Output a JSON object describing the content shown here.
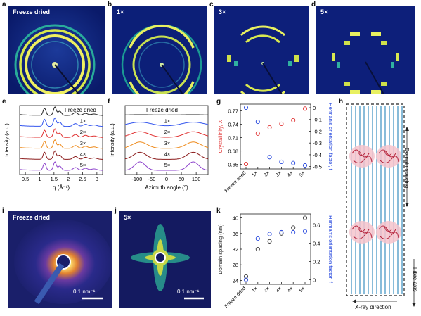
{
  "panels": {
    "a": {
      "letter": "a",
      "label": "Freeze dried"
    },
    "b": {
      "letter": "b",
      "label": "1×"
    },
    "c": {
      "letter": "c",
      "label": "3×"
    },
    "d": {
      "letter": "d",
      "label": "5×"
    },
    "e": {
      "letter": "e"
    },
    "f": {
      "letter": "f"
    },
    "g": {
      "letter": "g"
    },
    "h": {
      "letter": "h"
    },
    "i": {
      "letter": "i",
      "label": "Freeze dried",
      "scale": "0.1 nm⁻¹"
    },
    "j": {
      "letter": "j",
      "label": "5×",
      "scale": "0.1 nm⁻¹"
    },
    "k": {
      "letter": "k"
    }
  },
  "diagram_h": {
    "domain_spacing": "Domain spacing",
    "fibre_axis": "Fibre axis",
    "xray": "X-ray direction"
  },
  "chart_data": [
    {
      "id": "e",
      "type": "line",
      "xlabel": "q (Å⁻¹)",
      "ylabel": "Intensity (a.u.)",
      "xlim": [
        0.3,
        3.2
      ],
      "xticks": [
        0.5,
        1.0,
        1.5,
        2.0,
        2.5,
        3.0
      ],
      "series": [
        {
          "name": "Freeze dried",
          "color": "#222222"
        },
        {
          "name": "1×",
          "color": "#3355ee"
        },
        {
          "name": "2×",
          "color": "#e03030"
        },
        {
          "name": "3×",
          "color": "#ee8a1a"
        },
        {
          "name": "4×",
          "color": "#8b1a1a"
        },
        {
          "name": "5×",
          "color": "#8e44cc"
        }
      ]
    },
    {
      "id": "f",
      "type": "line",
      "xlabel": "Azimuth angle (°)",
      "ylabel": "Intensity (a.u.)",
      "xlim": [
        -140,
        140
      ],
      "xticks": [
        -100,
        -50,
        0,
        50,
        100
      ],
      "series": [
        {
          "name": "Freeze dried",
          "color": "#222222"
        },
        {
          "name": "1×",
          "color": "#3355ee"
        },
        {
          "name": "2×",
          "color": "#e03030"
        },
        {
          "name": "3×",
          "color": "#ee8a1a"
        },
        {
          "name": "4×",
          "color": "#8b1a1a"
        },
        {
          "name": "5×",
          "color": "#8e44cc"
        }
      ]
    },
    {
      "id": "g",
      "type": "scatter",
      "categories": [
        "Freeze dried",
        "1×",
        "2×",
        "3×",
        "4×",
        "5×"
      ],
      "y1label": "Crystallinity, X",
      "y1lim": [
        0.64,
        0.785
      ],
      "y1ticks": [
        0.65,
        0.68,
        0.71,
        0.74,
        0.77
      ],
      "y2label": "Herman's orientation factor, f",
      "y2lim": [
        -0.52,
        0.03
      ],
      "y2ticks": [
        0,
        -0.1,
        -0.2,
        -0.3,
        -0.4,
        -0.5
      ],
      "series": [
        {
          "name": "Crystallinity",
          "axis": "left",
          "color": "#e03030",
          "values": [
            0.651,
            0.719,
            0.733,
            0.741,
            0.749,
            0.775
          ]
        },
        {
          "name": "Orientation factor",
          "axis": "right",
          "color": "#2244dd",
          "values": [
            0,
            -0.12,
            -0.42,
            -0.46,
            -0.47,
            -0.49
          ]
        }
      ]
    },
    {
      "id": "k",
      "type": "scatter",
      "categories": [
        "Freeze dried",
        "1×",
        "2×",
        "3×",
        "4×",
        "5×"
      ],
      "y1label": "Domain spacing (nm)",
      "y1lim": [
        23,
        41
      ],
      "y1ticks": [
        24,
        28,
        32,
        36,
        40
      ],
      "y2label": "Herman's orientation factor, f",
      "y2lim": [
        -0.05,
        0.72
      ],
      "y2ticks": [
        0,
        0.2,
        0.4,
        0.6
      ],
      "series": [
        {
          "name": "Domain spacing",
          "axis": "left",
          "color": "#333333",
          "values": [
            25,
            32,
            34,
            36,
            37.5,
            40
          ]
        },
        {
          "name": "Orientation factor",
          "axis": "right",
          "color": "#2244dd",
          "values": [
            0,
            0.45,
            0.5,
            0.52,
            0.52,
            0.53
          ]
        }
      ]
    }
  ]
}
